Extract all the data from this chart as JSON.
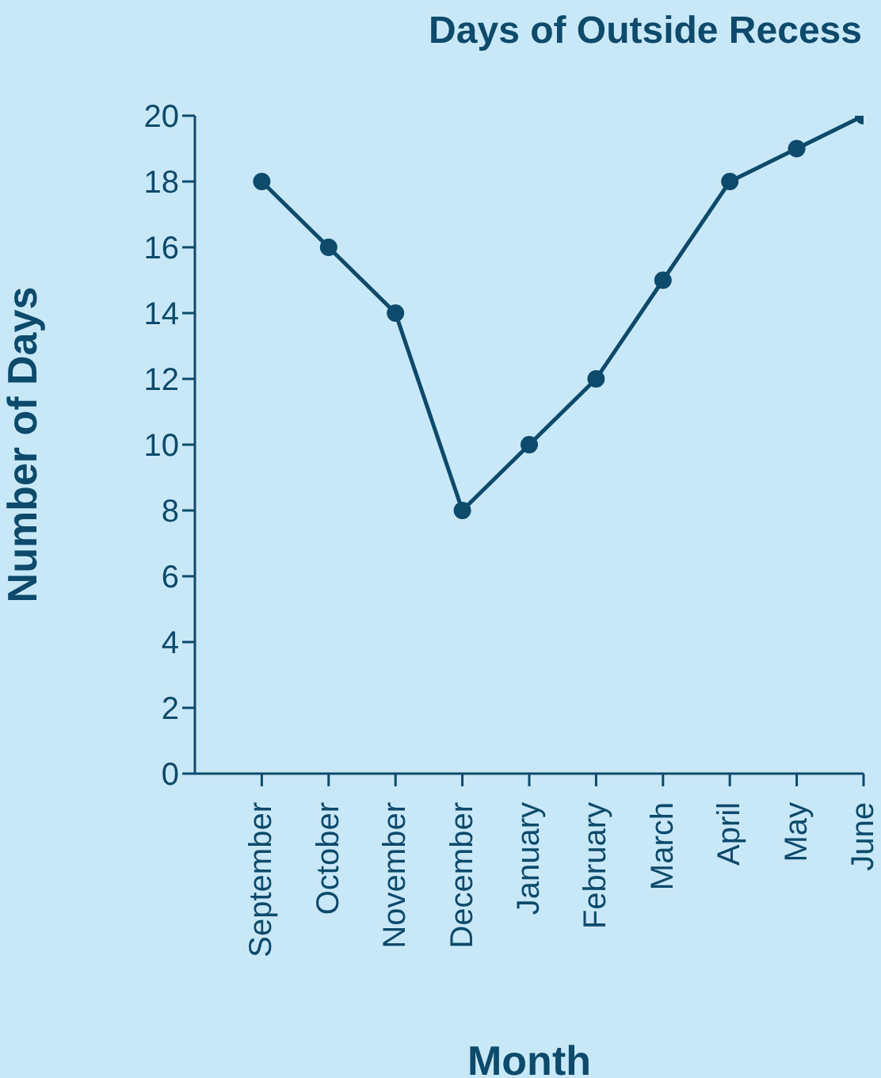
{
  "chart_data": {
    "type": "line",
    "title": "Days of Outside Recess",
    "xlabel": "Month",
    "ylabel": "Number of Days",
    "categories": [
      "September",
      "October",
      "November",
      "December",
      "January",
      "February",
      "March",
      "April",
      "May",
      "June"
    ],
    "series": [
      {
        "color": "#0d4a6b",
        "values": [
          18,
          16,
          14,
          8,
          10,
          12,
          15,
          18,
          19,
          20
        ]
      }
    ],
    "ylim": [
      0,
      20
    ],
    "yticks": [
      0,
      2,
      4,
      6,
      8,
      10,
      12,
      14,
      16,
      18,
      20
    ],
    "grid": false,
    "legend": false,
    "marker": "circle",
    "line_style": "solid"
  }
}
